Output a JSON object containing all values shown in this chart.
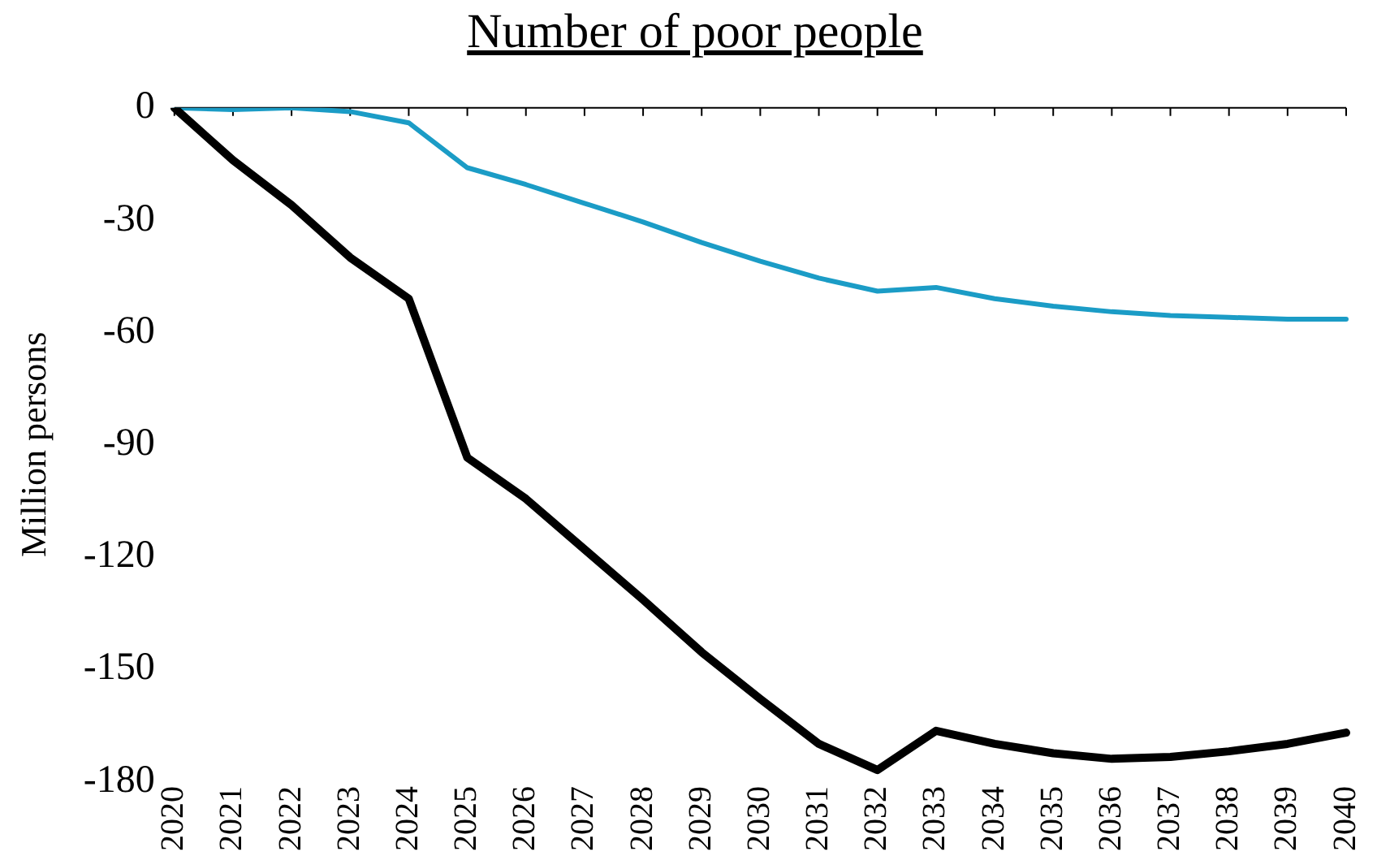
{
  "chart_data": {
    "type": "line",
    "title": "Number of poor people",
    "ylabel": "Million persons",
    "categories": [
      "2020",
      "2021",
      "2022",
      "2023",
      "2024",
      "2025",
      "2026",
      "2027",
      "2028",
      "2029",
      "2030",
      "2031",
      "2032",
      "2033",
      "2034",
      "2035",
      "2036",
      "2037",
      "2038",
      "2039",
      "2040"
    ],
    "series": [
      {
        "color": "#000000",
        "values": [
          0,
          -14,
          -26,
          -40,
          -51,
          -93.5,
          -104.5,
          -118,
          -131.5,
          -145.5,
          -158,
          -170,
          -177,
          -166.5,
          -170,
          -172.5,
          -174,
          -173.5,
          -172,
          -170,
          -167
        ]
      },
      {
        "color": "#1b9cc6",
        "values": [
          0,
          -0.5,
          0,
          -1,
          -4,
          -16,
          -20.5,
          -25.5,
          -30.5,
          -36,
          -41,
          -45.5,
          -49,
          -48,
          -51,
          -53,
          -54.5,
          -55.5,
          -56,
          -56.5,
          -56.5
        ]
      }
    ],
    "ylim": [
      -180,
      0
    ],
    "yticks": [
      -180,
      -150,
      -120,
      -90,
      -60,
      -30,
      0
    ],
    "grid": false,
    "legend": false,
    "marker": "none",
    "line_style": "solid"
  }
}
